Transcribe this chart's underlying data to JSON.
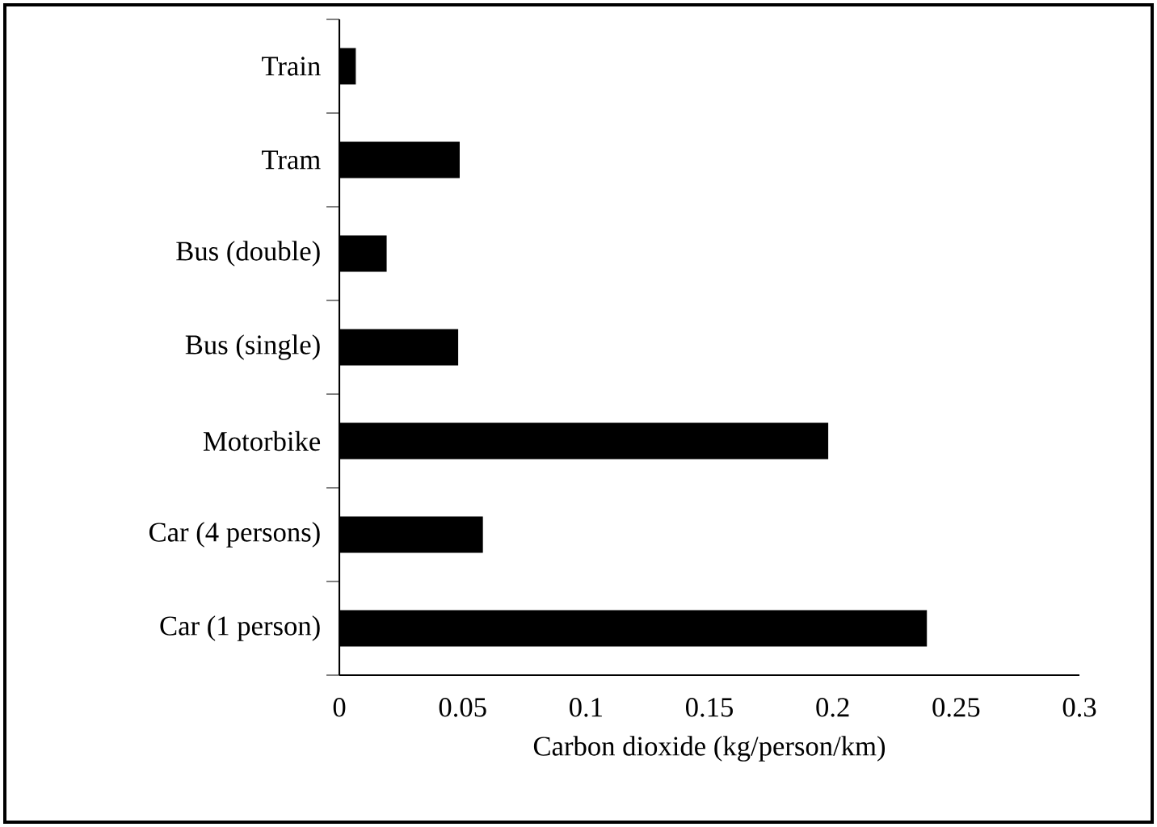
{
  "chart_data": {
    "type": "bar",
    "orientation": "horizontal",
    "categories": [
      "Train",
      "Tram",
      "Bus (double)",
      "Bus (single)",
      "Motorbike",
      "Car (4 persons)",
      "Car (1 person)"
    ],
    "values": [
      0.0065,
      0.0486,
      0.019,
      0.048,
      0.198,
      0.058,
      0.238
    ],
    "color": "#000000",
    "xlim": [
      0,
      0.3
    ],
    "xticks": [
      0,
      0.05,
      0.1,
      0.15,
      0.2,
      0.25,
      0.3
    ],
    "xlabel": "Carbon dioxide (kg/person/km)"
  }
}
